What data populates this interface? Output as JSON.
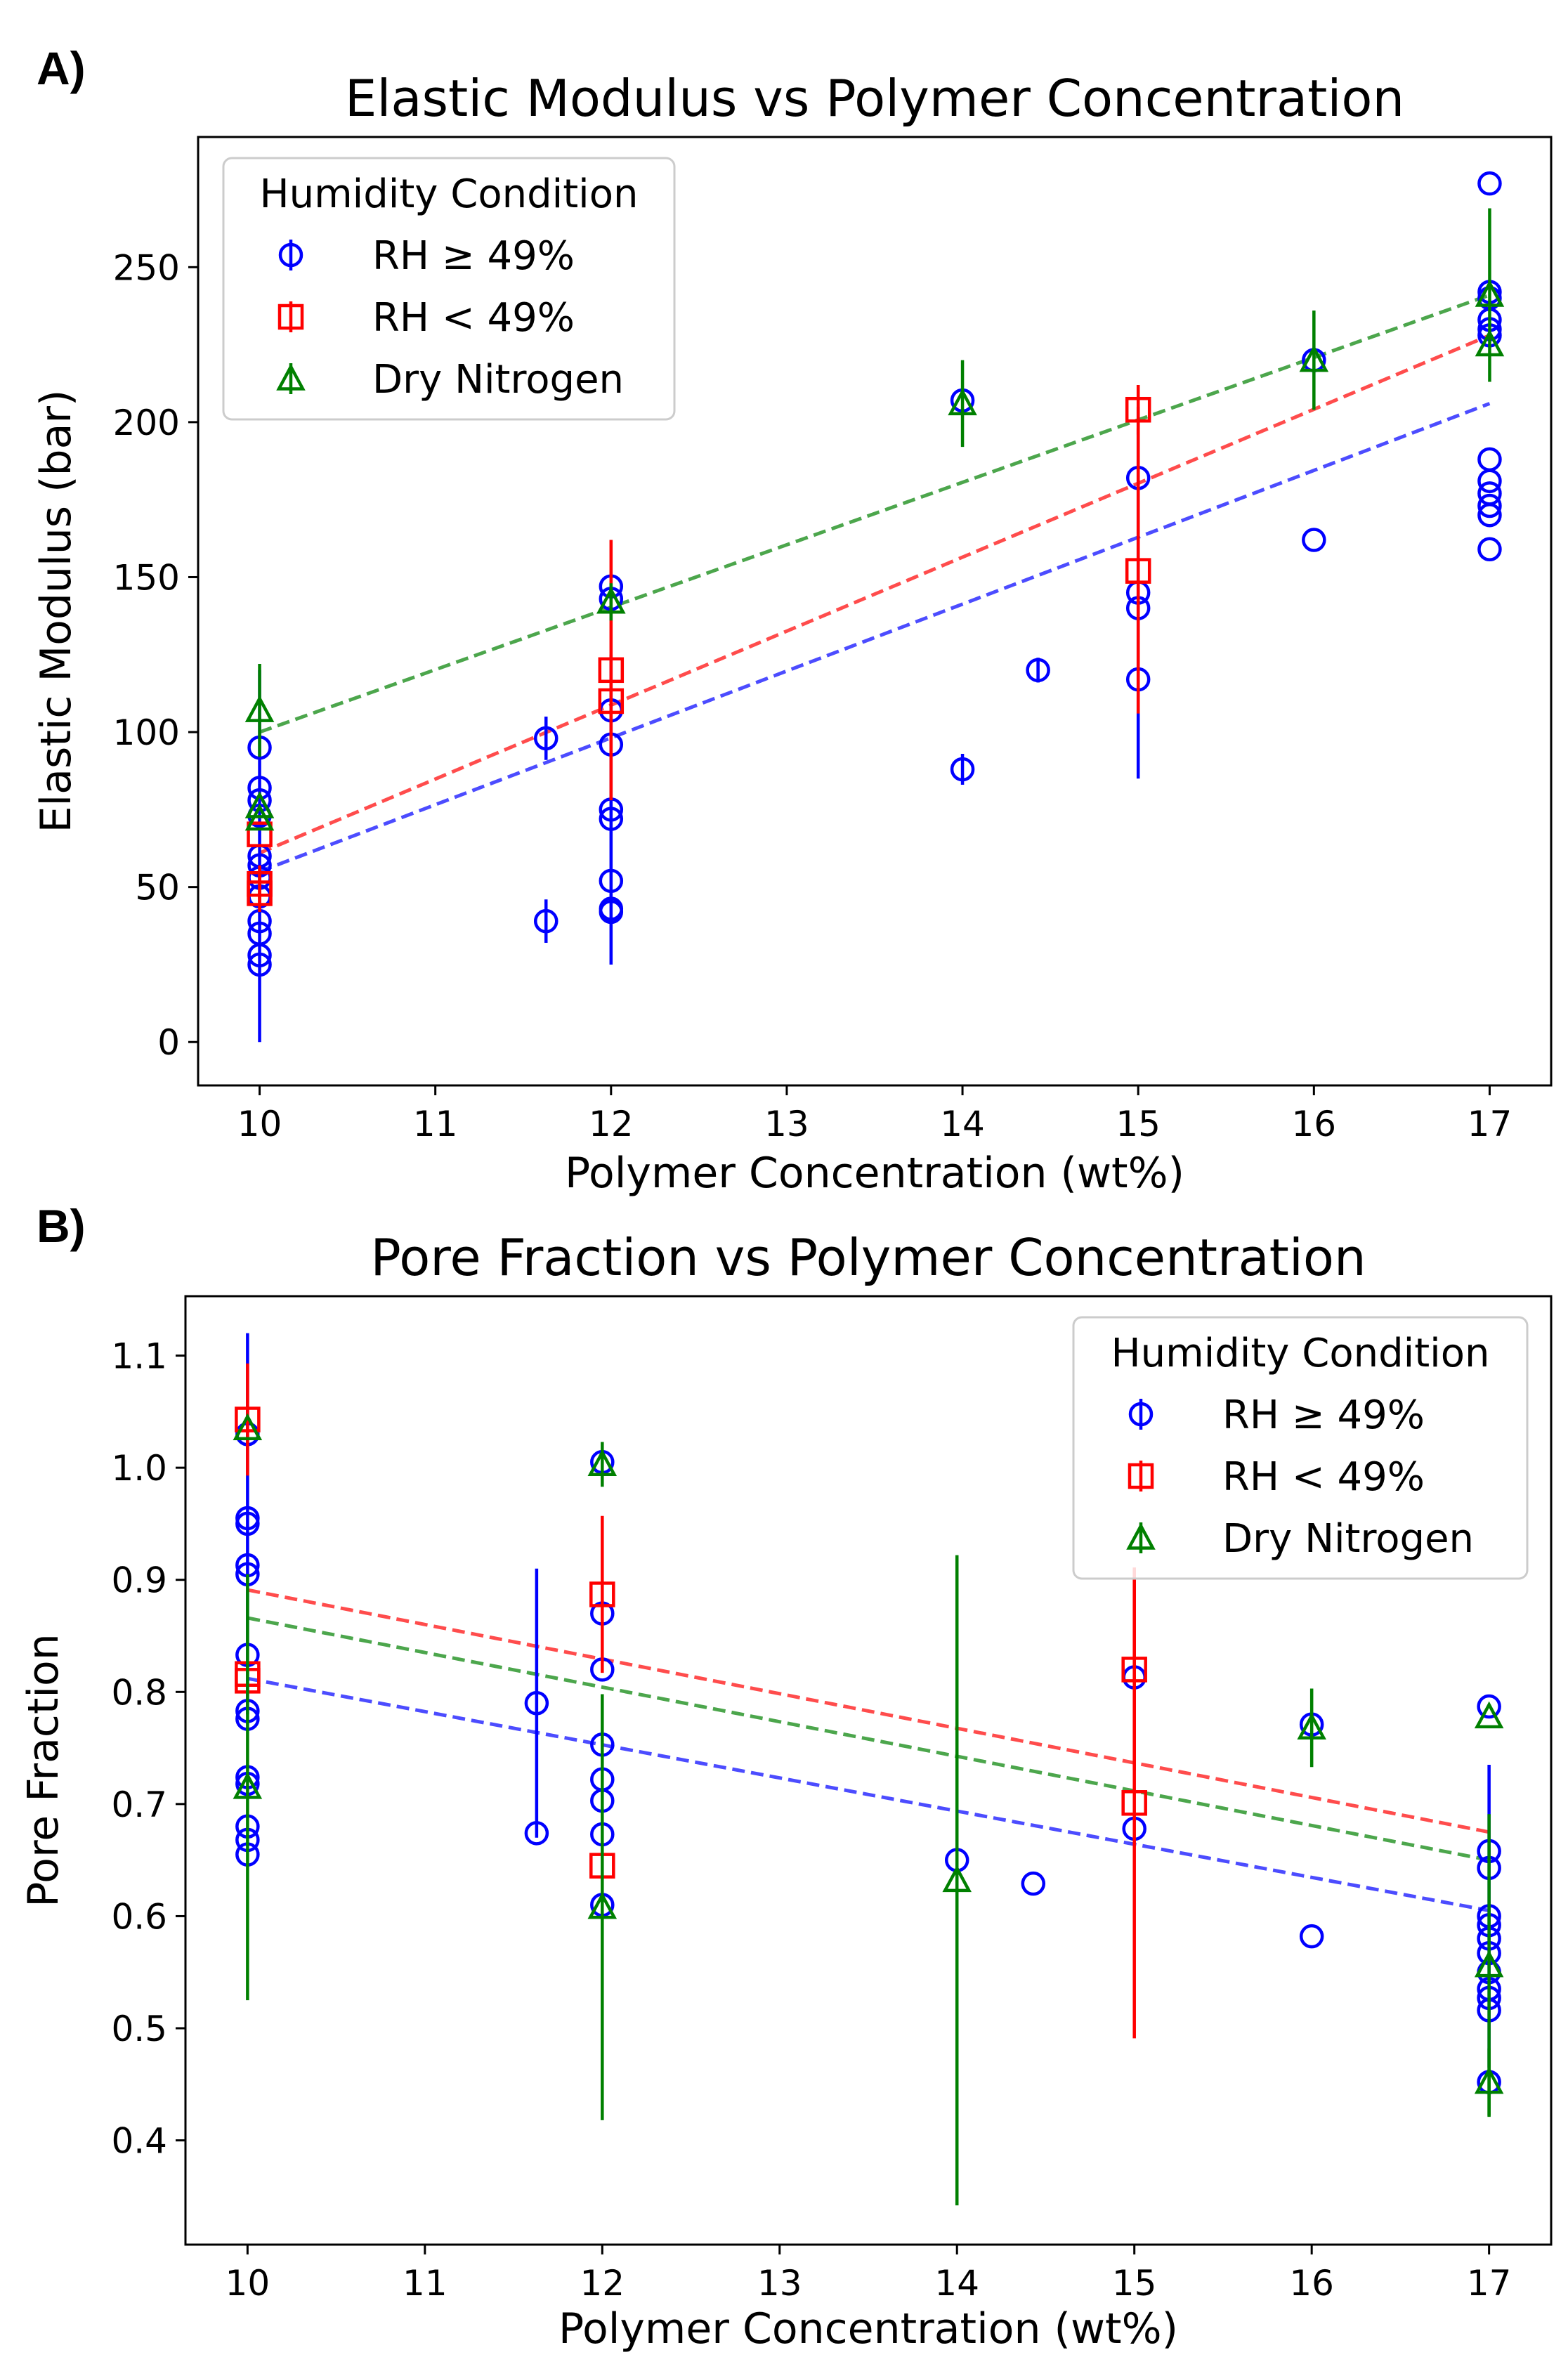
{
  "chart_data": [
    {
      "panel_label": "A)",
      "type": "scatter",
      "title": "Elastic Modulus vs Polymer Concentration",
      "xlabel": "Polymer Concentration (wt%)",
      "ylabel": "Elastic Modulus (bar)",
      "xlim": [
        9.65,
        17.35
      ],
      "ylim": [
        -14,
        292
      ],
      "xticks": [
        10,
        11,
        12,
        13,
        14,
        15,
        16,
        17
      ],
      "yticks": [
        0,
        50,
        100,
        150,
        200,
        250
      ],
      "grid": false,
      "legend": {
        "title": "Humidity Condition",
        "placement": "upper-left"
      },
      "series": [
        {
          "name": "RH ≥ 49%",
          "color": "#0000ff",
          "marker": "circle",
          "points": [
            {
              "x": 10,
              "y": 95,
              "err": 0
            },
            {
              "x": 10,
              "y": 82,
              "err": 0
            },
            {
              "x": 10,
              "y": 78,
              "err": 0
            },
            {
              "x": 10,
              "y": 73,
              "err": 0
            },
            {
              "x": 10,
              "y": 57,
              "err": 0
            },
            {
              "x": 10,
              "y": 53,
              "err": 0
            },
            {
              "x": 10,
              "y": 47,
              "err": 0
            },
            {
              "x": 10,
              "y": 39,
              "err": 0
            },
            {
              "x": 10,
              "y": 35,
              "err": 0
            },
            {
              "x": 10,
              "y": 28,
              "err": 0
            },
            {
              "x": 10,
              "y": 25,
              "err": 0
            },
            {
              "x": 10,
              "y": 60,
              "err": 60
            },
            {
              "x": 11.63,
              "y": 98,
              "err": 7
            },
            {
              "x": 11.63,
              "y": 39,
              "err": 7
            },
            {
              "x": 12,
              "y": 147,
              "err": 0
            },
            {
              "x": 12,
              "y": 143,
              "err": 0
            },
            {
              "x": 12,
              "y": 107,
              "err": 0
            },
            {
              "x": 12,
              "y": 96,
              "err": 0
            },
            {
              "x": 12,
              "y": 72,
              "err": 0
            },
            {
              "x": 12,
              "y": 52,
              "err": 0
            },
            {
              "x": 12,
              "y": 43,
              "err": 0
            },
            {
              "x": 12,
              "y": 42,
              "err": 0
            },
            {
              "x": 12,
              "y": 75,
              "err": 50
            },
            {
              "x": 14,
              "y": 207,
              "err": 0
            },
            {
              "x": 14,
              "y": 88,
              "err": 5
            },
            {
              "x": 14.43,
              "y": 120,
              "err": 4
            },
            {
              "x": 15,
              "y": 182,
              "err": 0
            },
            {
              "x": 15,
              "y": 140,
              "err": 0
            },
            {
              "x": 15,
              "y": 117,
              "err": 0
            },
            {
              "x": 15,
              "y": 145,
              "err": 60
            },
            {
              "x": 16,
              "y": 220,
              "err": 0
            },
            {
              "x": 16,
              "y": 162,
              "err": 0
            },
            {
              "x": 17,
              "y": 277,
              "err": 0
            },
            {
              "x": 17,
              "y": 242,
              "err": 0
            },
            {
              "x": 17,
              "y": 240,
              "err": 0
            },
            {
              "x": 17,
              "y": 233,
              "err": 0
            },
            {
              "x": 17,
              "y": 230,
              "err": 0
            },
            {
              "x": 17,
              "y": 228,
              "err": 0
            },
            {
              "x": 17,
              "y": 188,
              "err": 0
            },
            {
              "x": 17,
              "y": 181,
              "err": 0
            },
            {
              "x": 17,
              "y": 177,
              "err": 0
            },
            {
              "x": 17,
              "y": 173,
              "err": 0
            },
            {
              "x": 17,
              "y": 170,
              "err": 0
            },
            {
              "x": 17,
              "y": 159,
              "err": 0
            }
          ],
          "fit": {
            "x": [
              10,
              17
            ],
            "y": [
              55,
              206
            ]
          }
        },
        {
          "name": "RH < 49%",
          "color": "#ff0000",
          "marker": "square",
          "points": [
            {
              "x": 10,
              "y": 67,
              "err": 0
            },
            {
              "x": 10,
              "y": 51,
              "err": 6
            },
            {
              "x": 10,
              "y": 48,
              "err": 6
            },
            {
              "x": 12,
              "y": 120,
              "err": 42
            },
            {
              "x": 12,
              "y": 110,
              "err": 0
            },
            {
              "x": 15,
              "y": 204,
              "err": 8
            },
            {
              "x": 15,
              "y": 152,
              "err": 46
            }
          ],
          "fit": {
            "x": [
              10,
              17
            ],
            "y": [
              61,
              228
            ]
          }
        },
        {
          "name": "Dry Nitrogen",
          "color": "#008000",
          "marker": "triangle",
          "points": [
            {
              "x": 10,
              "y": 107,
              "err": 15
            },
            {
              "x": 10,
              "y": 76,
              "err": 0
            },
            {
              "x": 10,
              "y": 72,
              "err": 0
            },
            {
              "x": 12,
              "y": 142,
              "err": 6
            },
            {
              "x": 14,
              "y": 206,
              "err": 14
            },
            {
              "x": 16,
              "y": 220,
              "err": 16
            },
            {
              "x": 17,
              "y": 241,
              "err": 28
            },
            {
              "x": 17,
              "y": 225,
              "err": 0
            }
          ],
          "fit": {
            "x": [
              10,
              17
            ],
            "y": [
              100,
              241
            ]
          }
        }
      ]
    },
    {
      "panel_label": "B)",
      "type": "scatter",
      "title": "Pore Fraction vs Polymer Concentration",
      "xlabel": "Polymer Concentration (wt%)",
      "ylabel": "Pore Fraction",
      "xlim": [
        9.65,
        17.35
      ],
      "ylim": [
        0.307,
        1.153
      ],
      "xticks": [
        10,
        11,
        12,
        13,
        14,
        15,
        16,
        17
      ],
      "yticks": [
        0.4,
        0.5,
        0.6,
        0.7,
        0.8,
        0.9,
        1.0,
        1.1
      ],
      "ytick_labels": [
        "0.4",
        "0.5",
        "0.6",
        "0.7",
        "0.8",
        "0.9",
        "1.0",
        "1.1"
      ],
      "grid": false,
      "legend": {
        "title": "Humidity Condition",
        "placement": "upper-right"
      },
      "series": [
        {
          "name": "RH ≥ 49%",
          "color": "#0000ff",
          "marker": "circle",
          "points": [
            {
              "x": 10,
              "y": 0.955,
              "err": 0
            },
            {
              "x": 10,
              "y": 0.913,
              "err": 0
            },
            {
              "x": 10,
              "y": 0.905,
              "err": 0
            },
            {
              "x": 10,
              "y": 0.833,
              "err": 0
            },
            {
              "x": 10,
              "y": 0.783,
              "err": 0
            },
            {
              "x": 10,
              "y": 0.776,
              "err": 0
            },
            {
              "x": 10,
              "y": 0.724,
              "err": 0
            },
            {
              "x": 10,
              "y": 0.718,
              "err": 0
            },
            {
              "x": 10,
              "y": 0.68,
              "err": 0
            },
            {
              "x": 10,
              "y": 0.668,
              "err": 0
            },
            {
              "x": 10,
              "y": 0.655,
              "err": 0
            },
            {
              "x": 10,
              "y": 1.03,
              "err": 0
            },
            {
              "x": 10,
              "y": 0.95,
              "err": 0.17
            },
            {
              "x": 11.63,
              "y": 0.79,
              "err": 0.12
            },
            {
              "x": 11.63,
              "y": 0.674,
              "err": 0
            },
            {
              "x": 12,
              "y": 1.005,
              "err": 0
            },
            {
              "x": 12,
              "y": 0.87,
              "err": 0
            },
            {
              "x": 12,
              "y": 0.82,
              "err": 0
            },
            {
              "x": 12,
              "y": 0.753,
              "err": 0
            },
            {
              "x": 12,
              "y": 0.722,
              "err": 0
            },
            {
              "x": 12,
              "y": 0.703,
              "err": 0
            },
            {
              "x": 12,
              "y": 0.673,
              "err": 0
            },
            {
              "x": 12,
              "y": 0.61,
              "err": 0
            },
            {
              "x": 14,
              "y": 0.65,
              "err": 0
            },
            {
              "x": 14.43,
              "y": 0.629,
              "err": 0
            },
            {
              "x": 15,
              "y": 0.813,
              "err": 0
            },
            {
              "x": 15,
              "y": 0.678,
              "err": 0
            },
            {
              "x": 16,
              "y": 0.771,
              "err": 0
            },
            {
              "x": 16,
              "y": 0.582,
              "err": 0
            },
            {
              "x": 17,
              "y": 0.787,
              "err": 0
            },
            {
              "x": 17,
              "y": 0.658,
              "err": 0
            },
            {
              "x": 17,
              "y": 0.643,
              "err": 0
            },
            {
              "x": 17,
              "y": 0.592,
              "err": 0
            },
            {
              "x": 17,
              "y": 0.58,
              "err": 0
            },
            {
              "x": 17,
              "y": 0.567,
              "err": 0
            },
            {
              "x": 17,
              "y": 0.55,
              "err": 0
            },
            {
              "x": 17,
              "y": 0.535,
              "err": 0
            },
            {
              "x": 17,
              "y": 0.527,
              "err": 0
            },
            {
              "x": 17,
              "y": 0.516,
              "err": 0
            },
            {
              "x": 17,
              "y": 0.452,
              "err": 0
            },
            {
              "x": 17,
              "y": 0.6,
              "err": 0.135
            }
          ],
          "fit": {
            "x": [
              10,
              17
            ],
            "y": [
              0.812,
              0.605
            ]
          }
        },
        {
          "name": "RH < 49%",
          "color": "#ff0000",
          "marker": "square",
          "points": [
            {
              "x": 10,
              "y": 1.043,
              "err": 0.05
            },
            {
              "x": 10,
              "y": 0.816,
              "err": 0
            },
            {
              "x": 10,
              "y": 0.81,
              "err": 0
            },
            {
              "x": 12,
              "y": 0.887,
              "err": 0.07
            },
            {
              "x": 12,
              "y": 0.645,
              "err": 0
            },
            {
              "x": 15,
              "y": 0.82,
              "err": 0.09
            },
            {
              "x": 15,
              "y": 0.701,
              "err": 0.21
            }
          ],
          "fit": {
            "x": [
              10,
              17
            ],
            "y": [
              0.891,
              0.675
            ]
          }
        },
        {
          "name": "Dry Nitrogen",
          "color": "#008000",
          "marker": "triangle",
          "points": [
            {
              "x": 10,
              "y": 1.035,
              "err": 0
            },
            {
              "x": 10,
              "y": 0.715,
              "err": 0.19
            },
            {
              "x": 12,
              "y": 1.003,
              "err": 0.02
            },
            {
              "x": 12,
              "y": 0.608,
              "err": 0.19
            },
            {
              "x": 14,
              "y": 0.632,
              "err": 0.29
            },
            {
              "x": 16,
              "y": 0.768,
              "err": 0.035
            },
            {
              "x": 17,
              "y": 0.778,
              "err": 0
            },
            {
              "x": 17,
              "y": 0.556,
              "err": 0.135
            },
            {
              "x": 17,
              "y": 0.452,
              "err": 0.03
            }
          ],
          "fit": {
            "x": [
              10,
              17
            ],
            "y": [
              0.866,
              0.65
            ]
          }
        }
      ]
    }
  ]
}
